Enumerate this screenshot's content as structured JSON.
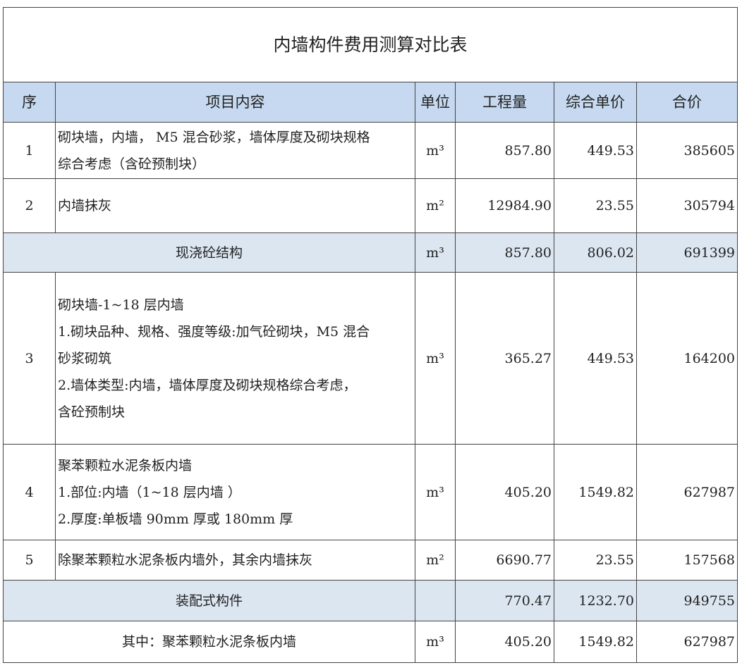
{
  "title": "内墙构件费用测算对比表",
  "headers": [
    "序",
    "项目内容",
    "单位",
    "工程量",
    "综合单价",
    "合价"
  ],
  "rows": [
    {
      "no": "1",
      "content": [
        "砌块墙，内墙， M5 混合砂浆，墙体厚度及砌块规格",
        "综合考虑（含砼预制块）"
      ],
      "unit": "m³",
      "qty": "857.80",
      "price": "449.53",
      "total": "385605"
    },
    {
      "no": "2",
      "content": [
        "内墙抹灰"
      ],
      "unit": "m²",
      "qty": "12984.90",
      "price": "23.55",
      "total": "305794"
    },
    {
      "subtotal": "现浇砼结构",
      "unit": "m³",
      "qty": "857.80",
      "price": "806.02",
      "total": "691399"
    },
    {
      "no": "3",
      "content": [
        "砌块墙-1~18 层内墙",
        "1.砌块品种、规格、强度等级:加气砼砌块，M5 混合",
        "砂浆砌筑",
        "2.墙体类型:内墙，墙体厚度及砌块规格综合考虑，",
        "含砼预制块"
      ],
      "unit": "m³",
      "qty": "365.27",
      "price": "449.53",
      "total": "164200"
    },
    {
      "no": "4",
      "content": [
        "聚苯颗粒水泥条板内墙",
        "1.部位:内墙（1~18 层内墙 ）",
        "2.厚度:单板墙 90mm 厚或 180mm 厚"
      ],
      "unit": "m³",
      "qty": "405.20",
      "price": "1549.82",
      "total": "627987"
    },
    {
      "no": "5",
      "content": [
        "除聚苯颗粒水泥条板内墙外，其余内墙抹灰"
      ],
      "unit": "m²",
      "qty": "6690.77",
      "price": "23.55",
      "total": "157568"
    },
    {
      "subtotal": "装配式构件",
      "unit": "",
      "qty": "770.47",
      "price": "1232.70",
      "total": "949755"
    },
    {
      "plain": "其中：聚苯颗粒水泥条板内墙",
      "unit": "m³",
      "qty": "405.20",
      "price": "1549.82",
      "total": "627987"
    }
  ],
  "colors": {
    "header_bg": "#c6d9f0",
    "subtotal_bg": "#dce6f1",
    "border": "#444444"
  }
}
